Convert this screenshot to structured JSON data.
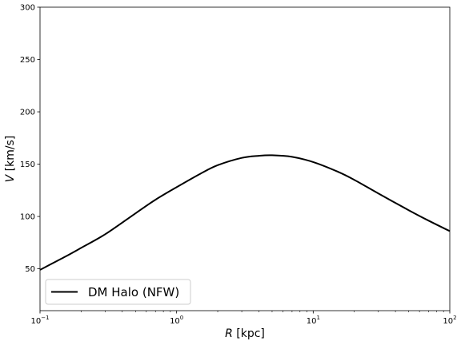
{
  "chart_data": {
    "type": "line",
    "title": "",
    "xlabel": {
      "var": "R",
      "unit": " [kpc]"
    },
    "ylabel": {
      "var": "V",
      "unit": " [km/s]"
    },
    "xscale": "log",
    "xlim": [
      0.1,
      100
    ],
    "ylim": [
      10,
      300
    ],
    "x_ticks": [
      {
        "value": 0.1,
        "base": "10",
        "exp": "−1"
      },
      {
        "value": 1,
        "base": "10",
        "exp": "0"
      },
      {
        "value": 10,
        "base": "10",
        "exp": "1"
      },
      {
        "value": 100,
        "base": "10",
        "exp": "2"
      }
    ],
    "y_ticks": [
      50,
      100,
      150,
      200,
      250,
      300
    ],
    "grid": false,
    "legend_position": "lower-left",
    "series": [
      {
        "name": "DM Halo (NFW)",
        "color": "#000000",
        "x": [
          0.1,
          0.15,
          0.2,
          0.3,
          0.5,
          0.7,
          1,
          1.5,
          2,
          3,
          4,
          5,
          7,
          10,
          15,
          20,
          30,
          50,
          70,
          100
        ],
        "y": [
          49,
          61,
          70,
          83,
          103,
          116,
          128,
          141,
          149,
          156,
          158,
          158.5,
          157,
          152,
          143,
          135,
          122,
          106,
          96,
          86
        ]
      }
    ]
  }
}
